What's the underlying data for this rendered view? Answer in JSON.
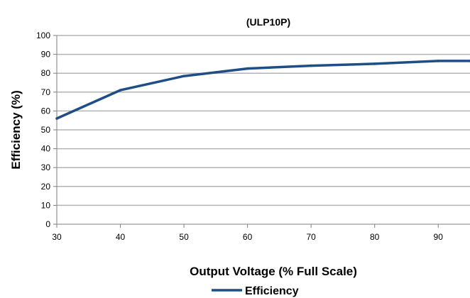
{
  "chart_data": {
    "type": "line",
    "title": "(ULP10P)",
    "xlabel": "Output Voltage (% Full Scale)",
    "ylabel": "Efficiency (%)",
    "x_ticks": [
      30,
      40,
      50,
      60,
      70,
      80,
      90
    ],
    "y_ticks": [
      0,
      10,
      20,
      30,
      40,
      50,
      60,
      70,
      80,
      90,
      100
    ],
    "xlim": [
      30,
      95
    ],
    "ylim": [
      0,
      100
    ],
    "grid": true,
    "legend_position": "bottom",
    "series": [
      {
        "name": "Efficiency",
        "color": "#1f4e86",
        "x": [
          30,
          40,
          50,
          60,
          70,
          80,
          90,
          95
        ],
        "y": [
          56,
          71,
          78.5,
          82.5,
          84,
          85,
          86.5,
          86.5
        ]
      }
    ]
  },
  "colors": {
    "gridline": "#b3b3b3",
    "axis": "#7f7f7f",
    "line": "#1f4e86"
  }
}
